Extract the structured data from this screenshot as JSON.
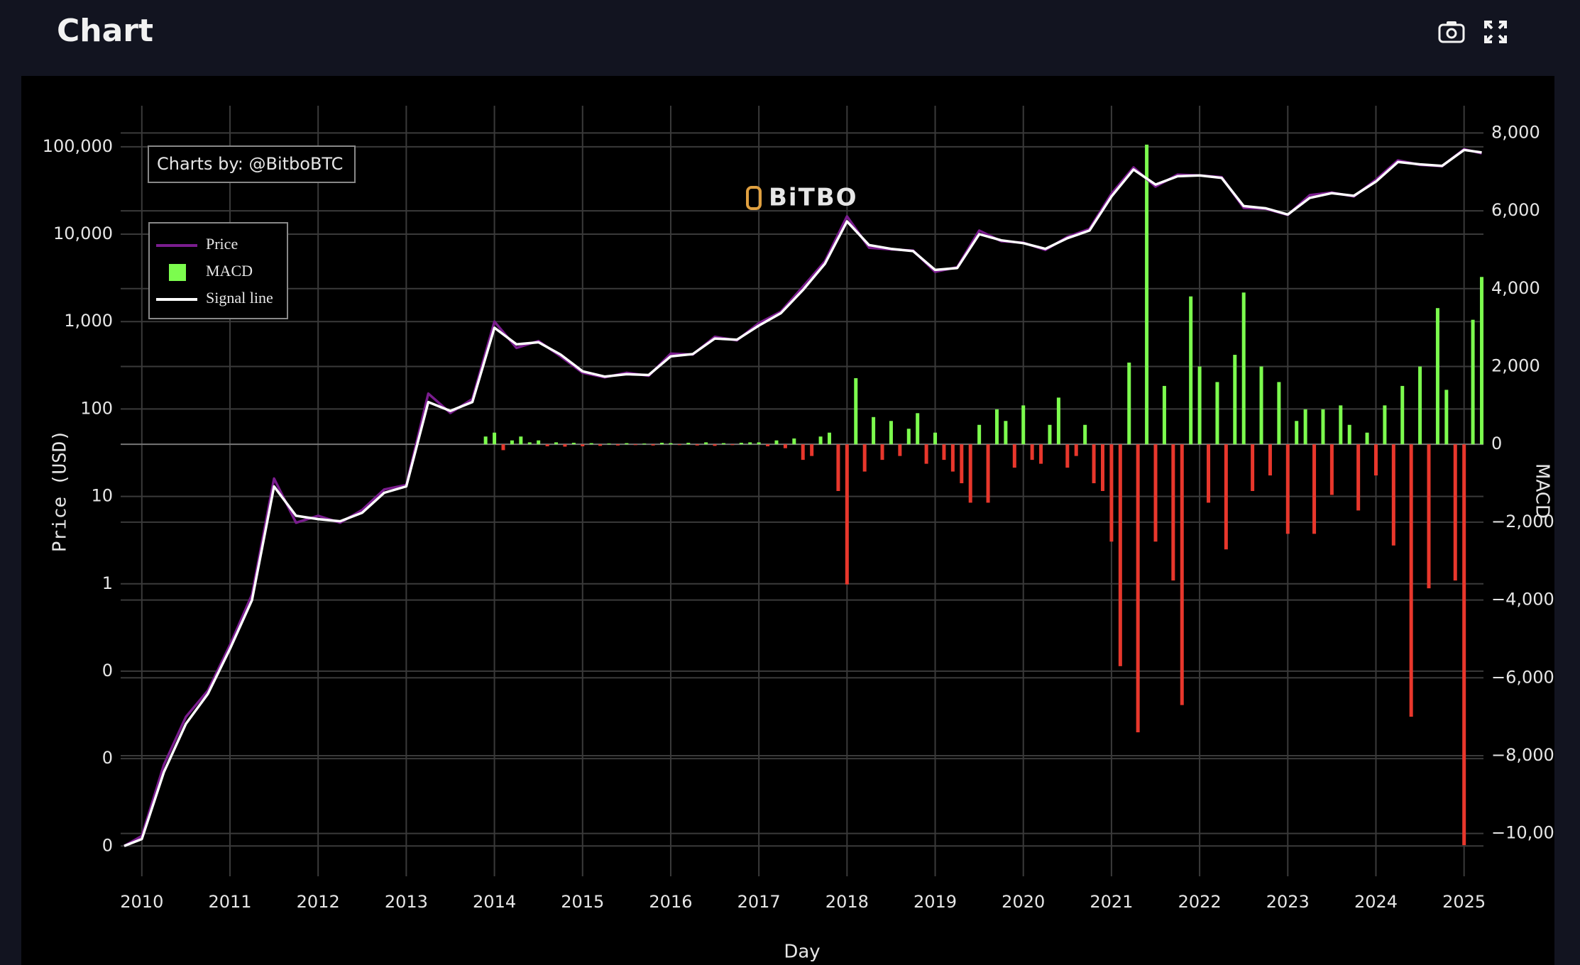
{
  "chart_data": {
    "type": "line",
    "title": "Chart",
    "annotation": "Charts by: @BitboBTC",
    "watermark": "BiTBO",
    "xlabel": "Day",
    "ylabel": "Price (USD)",
    "y2label": "MACD",
    "yscale": "log",
    "grid": true,
    "xlim": [
      2009.76,
      2025.22
    ],
    "xticks": [
      2010,
      2011,
      2012,
      2013,
      2014,
      2015,
      2016,
      2017,
      2018,
      2019,
      2020,
      2021,
      2022,
      2023,
      2024,
      2025
    ],
    "ylim": [
      0.00045,
      295000
    ],
    "yticks": [
      {
        "value": 0.001,
        "label": "0"
      },
      {
        "value": 0.01,
        "label": "0"
      },
      {
        "value": 0.1,
        "label": "0"
      },
      1,
      10,
      100,
      {
        "value": 1000,
        "label": "1,000"
      },
      {
        "value": 10000,
        "label": "10,000"
      },
      {
        "value": 100000,
        "label": "100,000"
      }
    ],
    "y2lim": [
      -11100,
      8700
    ],
    "y2ticks": [
      {
        "value": -10000,
        "label": "−10,000"
      },
      {
        "value": -8000,
        "label": "−8,000"
      },
      {
        "value": -6000,
        "label": "−6,000"
      },
      {
        "value": -4000,
        "label": "−4,000"
      },
      {
        "value": -2000,
        "label": "−2,000"
      },
      0,
      {
        "value": 2000,
        "label": "2,000"
      },
      {
        "value": 4000,
        "label": "4,000"
      },
      {
        "value": 6000,
        "label": "6,000"
      },
      {
        "value": 8000,
        "label": "8,000"
      }
    ],
    "x": [
      2009.8,
      2010,
      2010.25,
      2010.5,
      2010.75,
      2011,
      2011.25,
      2011.5,
      2011.75,
      2012,
      2012.25,
      2012.5,
      2012.75,
      2013,
      2013.25,
      2013.5,
      2013.75,
      2014,
      2014.25,
      2014.5,
      2014.75,
      2015,
      2015.25,
      2015.5,
      2015.75,
      2016,
      2016.25,
      2016.5,
      2016.75,
      2017,
      2017.25,
      2017.5,
      2017.75,
      2018,
      2018.25,
      2018.5,
      2018.75,
      2019,
      2019.25,
      2019.5,
      2019.75,
      2020,
      2020.25,
      2020.5,
      2020.75,
      2021,
      2021.25,
      2021.5,
      2021.75,
      2022,
      2022.25,
      2022.5,
      2022.75,
      2023,
      2023.25,
      2023.5,
      2023.75,
      2024,
      2024.25,
      2024.5,
      2024.75,
      2025,
      2025.2
    ],
    "series": [
      {
        "name": "Price",
        "type": "line",
        "color": "#7a1d8e",
        "values": [
          0.001,
          0.0013,
          0.0085,
          0.03,
          0.06,
          0.2,
          0.75,
          16,
          5,
          6,
          5,
          7,
          12,
          13.5,
          150,
          90,
          130,
          1000,
          500,
          600,
          400,
          260,
          230,
          260,
          240,
          430,
          420,
          670,
          610,
          960,
          1300,
          2500,
          4900,
          16000,
          7000,
          6700,
          6500,
          3700,
          4200,
          11000,
          8300,
          8000,
          6600,
          9300,
          11500,
          29000,
          58000,
          35000,
          48000,
          47000,
          45000,
          20000,
          19500,
          16600,
          28000,
          30000,
          27000,
          42000,
          70000,
          62000,
          60000,
          94000,
          84000
        ]
      },
      {
        "name": "MACD",
        "type": "bar",
        "axis": "y2",
        "color": "#7cfc4e",
        "negative_color": "#e8372c",
        "x": [
          2013.9,
          2014,
          2014.1,
          2014.2,
          2014.3,
          2014.4,
          2014.5,
          2014.6,
          2014.7,
          2014.8,
          2014.9,
          2015,
          2015.1,
          2015.2,
          2015.3,
          2015.4,
          2015.5,
          2015.6,
          2015.7,
          2015.8,
          2015.9,
          2016,
          2016.1,
          2016.2,
          2016.3,
          2016.4,
          2016.5,
          2016.6,
          2016.7,
          2016.8,
          2016.9,
          2017,
          2017.1,
          2017.2,
          2017.3,
          2017.4,
          2017.5,
          2017.6,
          2017.7,
          2017.8,
          2017.9,
          2018,
          2018.1,
          2018.2,
          2018.3,
          2018.4,
          2018.5,
          2018.6,
          2018.7,
          2018.8,
          2018.9,
          2019,
          2019.1,
          2019.2,
          2019.3,
          2019.4,
          2019.5,
          2019.6,
          2019.7,
          2019.8,
          2019.9,
          2020,
          2020.1,
          2020.2,
          2020.3,
          2020.4,
          2020.5,
          2020.6,
          2020.7,
          2020.8,
          2020.9,
          2021,
          2021.1,
          2021.2,
          2021.3,
          2021.4,
          2021.5,
          2021.6,
          2021.7,
          2021.8,
          2021.9,
          2022,
          2022.1,
          2022.2,
          2022.3,
          2022.4,
          2022.5,
          2022.6,
          2022.7,
          2022.8,
          2022.9,
          2023,
          2023.1,
          2023.2,
          2023.3,
          2023.4,
          2023.5,
          2023.6,
          2023.7,
          2023.8,
          2023.9,
          2024,
          2024.1,
          2024.2,
          2024.3,
          2024.4,
          2024.5,
          2024.6,
          2024.7,
          2024.8,
          2024.9,
          2025,
          2025.1,
          2025.2
        ],
        "values": [
          200,
          300,
          -150,
          100,
          200,
          50,
          100,
          -50,
          50,
          -60,
          40,
          -50,
          30,
          -40,
          20,
          -30,
          30,
          -20,
          20,
          -30,
          40,
          30,
          -20,
          40,
          -30,
          50,
          -40,
          30,
          -20,
          40,
          50,
          50,
          -50,
          100,
          -100,
          150,
          -400,
          -300,
          200,
          300,
          -1200,
          -3600,
          1700,
          -700,
          700,
          -400,
          600,
          -300,
          400,
          800,
          -500,
          300,
          -400,
          -700,
          -1000,
          -1500,
          500,
          -1500,
          900,
          600,
          -600,
          1000,
          -400,
          -500,
          500,
          1200,
          -600,
          -300,
          500,
          -1000,
          -1200,
          -2500,
          -5700,
          2100,
          -7400,
          7700,
          -2500,
          1500,
          -3500,
          -6700,
          3800,
          2000,
          -1500,
          1600,
          -2700,
          2300,
          3900,
          -1200,
          2000,
          -800,
          1600,
          -2300,
          600,
          900,
          -2300,
          900,
          -1300,
          1000,
          500,
          -1700,
          300,
          -800,
          1000,
          -2600,
          1500,
          -7000,
          2000,
          -3700,
          3500,
          1400,
          -3500,
          -10300,
          3200,
          4300
        ]
      },
      {
        "name": "Signal line",
        "type": "line",
        "color": "#ffffff",
        "values": [
          0.001,
          0.0012,
          0.007,
          0.025,
          0.055,
          0.18,
          0.65,
          13,
          6,
          5.5,
          5.2,
          6.5,
          11,
          13,
          120,
          95,
          120,
          850,
          550,
          580,
          420,
          270,
          235,
          250,
          245,
          400,
          425,
          640,
          620,
          900,
          1250,
          2300,
          4600,
          14000,
          7500,
          6800,
          6400,
          3900,
          4100,
          10000,
          8500,
          7900,
          6800,
          9000,
          11000,
          27000,
          55000,
          37000,
          46000,
          47000,
          44000,
          21000,
          19800,
          16800,
          26000,
          29500,
          27500,
          40000,
          67000,
          63000,
          60500,
          92000,
          86000
        ]
      }
    ]
  }
}
